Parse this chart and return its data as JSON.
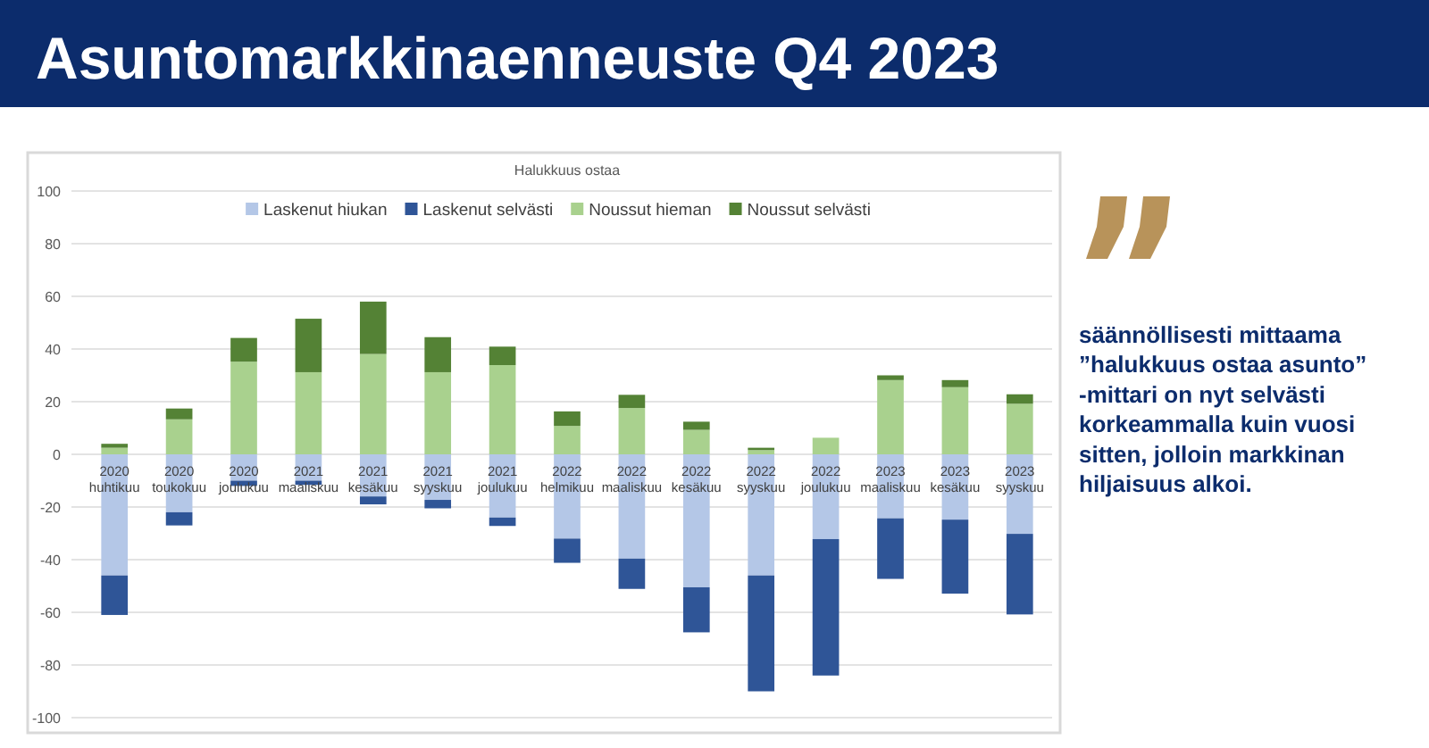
{
  "chart_data": {
    "type": "bar",
    "title": "Asuntomarkkinaenneuste Q4 2023",
    "subtitle": "Halukkuus ostaa",
    "categories": [
      "2020 huhtikuu",
      "2020 toukokuu",
      "2020 joulukuu",
      "2021 maaliskuu",
      "2021 kesäkuu",
      "2021 syyskuu",
      "2021 joulukuu",
      "2022 helmikuu",
      "2022 maaliskuu",
      "2022 kesäkuu",
      "2022 syyskuu",
      "2022 joulukuu",
      "2023 maaliskuu",
      "2023 kesäkuu",
      "2023 syyskuu"
    ],
    "series": [
      {
        "name": "Laskenut hiukan",
        "color": "#b4c7e7",
        "values": [
          -46,
          -22,
          -10,
          -10,
          -16,
          -17.3,
          -24,
          -32,
          -39.6,
          -50.5,
          -46,
          -32.2,
          -24.3,
          -24.8,
          -30.2
        ]
      },
      {
        "name": "Laskenut selvästi",
        "color": "#2f5597",
        "values": [
          -15,
          -5,
          -2,
          -1.6,
          -3,
          -3.2,
          -3.2,
          -9.2,
          -11.5,
          -17.1,
          -44,
          -51.8,
          -23,
          -28.1,
          -30.6
        ]
      },
      {
        "name": "Noussut hieman",
        "color": "#a9d18e",
        "values": [
          2.5,
          13.3,
          35.2,
          31.2,
          38.1,
          31.2,
          33.9,
          10.8,
          17.6,
          9.3,
          1.6,
          6.3,
          28.2,
          25.5,
          19.2
        ]
      },
      {
        "name": "Noussut selvästi",
        "color": "#548235",
        "values": [
          1.5,
          4.1,
          9,
          20.3,
          19.9,
          13.3,
          7,
          5.5,
          5,
          3.1,
          0.9,
          0,
          1.8,
          2.7,
          3.6
        ]
      }
    ],
    "stacked": true,
    "ylim": [
      -100,
      100
    ],
    "yticks": [
      -100,
      -80,
      -60,
      -40,
      -20,
      0,
      20,
      40,
      60,
      80,
      100
    ],
    "grid": "y",
    "legend": "top",
    "annotations": [
      "säännöllisesti mittaama ”halukkuus ostaa asunto” -mittari on nyt selvästi korkeammalla kuin vuosi sitten, jolloin markkinan hiljaisuus alkoi."
    ]
  }
}
